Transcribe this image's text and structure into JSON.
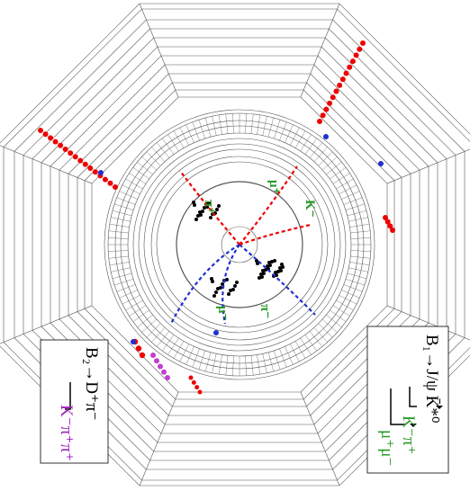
{
  "decays": [
    {
      "label": "B₁→J/ψ K̄*⁰",
      "products": [
        "K⁻π⁺",
        "μ⁺μ⁻"
      ]
    },
    {
      "label": "B₂→D⁺π⁻",
      "products": [
        "K⁻π⁺π⁺"
      ]
    }
  ],
  "track_labels": [
    "μ⁺",
    "μ⁻",
    "π⁺",
    "K⁻",
    "π⁻"
  ]
}
